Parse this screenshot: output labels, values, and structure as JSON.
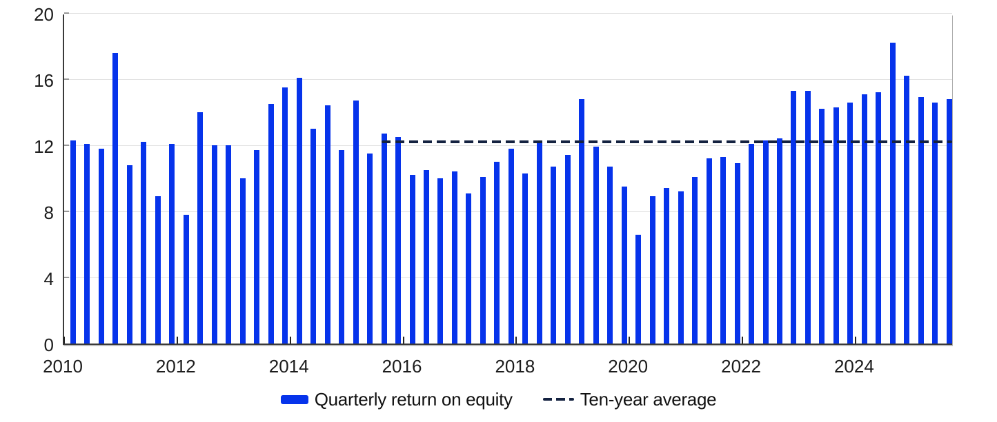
{
  "chart_data": {
    "type": "bar",
    "title": "",
    "xlabel": "",
    "ylabel": "",
    "ylim": [
      0,
      20
    ],
    "y_ticks": [
      0,
      4,
      8,
      12,
      16,
      20
    ],
    "x_tick_labels": [
      "2010",
      "2012",
      "2014",
      "2016",
      "2018",
      "2020",
      "2022",
      "2024"
    ],
    "grid": "horizontal",
    "legend_position": "bottom",
    "categories": [
      "2010 Q1",
      "2010 Q2",
      "2010 Q3",
      "2010 Q4",
      "2011 Q1",
      "2011 Q2",
      "2011 Q3",
      "2011 Q4",
      "2012 Q1",
      "2012 Q2",
      "2012 Q3",
      "2012 Q4",
      "2013 Q1",
      "2013 Q2",
      "2013 Q3",
      "2013 Q4",
      "2014 Q1",
      "2014 Q2",
      "2014 Q3",
      "2014 Q4",
      "2015 Q1",
      "2015 Q2",
      "2015 Q3",
      "2015 Q4",
      "2016 Q1",
      "2016 Q2",
      "2016 Q3",
      "2016 Q4",
      "2017 Q1",
      "2017 Q2",
      "2017 Q3",
      "2017 Q4",
      "2018 Q1",
      "2018 Q2",
      "2018 Q3",
      "2018 Q4",
      "2019 Q1",
      "2019 Q2",
      "2019 Q3",
      "2019 Q4",
      "2020 Q1",
      "2020 Q2",
      "2020 Q3",
      "2020 Q4",
      "2021 Q1",
      "2021 Q2",
      "2021 Q3",
      "2021 Q4",
      "2022 Q1",
      "2022 Q2",
      "2022 Q3",
      "2022 Q4",
      "2023 Q1",
      "2023 Q2",
      "2023 Q3",
      "2023 Q4",
      "2024 Q1",
      "2024 Q2",
      "2024 Q3",
      "2024 Q4",
      "2025 Q1",
      "2025 Q2",
      "2025 Q3"
    ],
    "series": [
      {
        "name": "Quarterly return on equity",
        "type": "bar",
        "color": "#0633EB",
        "values": [
          12.3,
          12.1,
          11.8,
          17.6,
          10.8,
          12.2,
          8.9,
          12.1,
          7.8,
          14.0,
          12.0,
          12.0,
          10.0,
          11.7,
          14.5,
          15.5,
          16.1,
          13.0,
          14.4,
          11.7,
          14.7,
          11.5,
          12.7,
          12.5,
          10.2,
          10.5,
          10.0,
          10.4,
          9.1,
          10.1,
          11.0,
          11.8,
          10.3,
          12.2,
          10.7,
          11.4,
          14.8,
          11.9,
          10.7,
          9.5,
          6.6,
          8.9,
          9.4,
          9.2,
          10.1,
          11.2,
          11.3,
          10.9,
          12.1,
          12.3,
          12.4,
          15.3,
          15.3,
          14.2,
          14.3,
          14.6,
          15.1,
          15.2,
          18.2,
          16.2,
          14.9,
          14.6,
          14.8
        ]
      },
      {
        "name": "Ten-year average",
        "type": "dashed-line",
        "color": "#142240",
        "value": 12.2,
        "start_category": "2015 Q3",
        "end_category": "2025 Q3"
      }
    ]
  },
  "legend": {
    "items": [
      {
        "label": "Quarterly return on equity",
        "swatch": "bar"
      },
      {
        "label": "Ten-year average",
        "swatch": "dashed-line"
      }
    ]
  },
  "colors": {
    "bar": "#0633EB",
    "average_line": "#142240",
    "gridline": "#e3e3e3",
    "axis": "#3a3a3a",
    "text": "#1c1c1c",
    "background": "#ffffff"
  }
}
